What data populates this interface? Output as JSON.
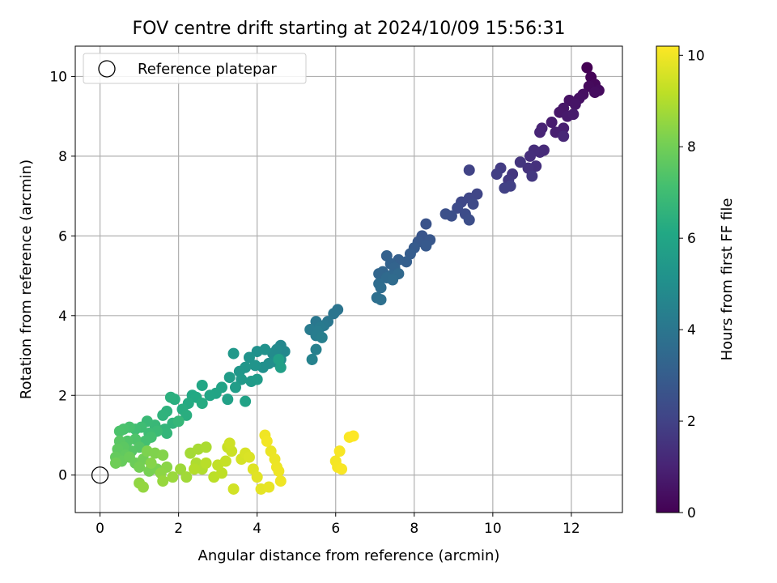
{
  "chart_data": {
    "type": "scatter",
    "title": "FOV centre drift starting at 2024/10/09 15:56:31",
    "xlabel": "Angular distance from reference (arcmin)",
    "ylabel": "Rotation from reference (arcmin)",
    "xlim": [
      -0.63,
      13.3
    ],
    "ylim": [
      -0.94,
      10.76
    ],
    "xticks": [
      0,
      2,
      4,
      6,
      8,
      10,
      12
    ],
    "yticks": [
      0,
      2,
      4,
      6,
      8,
      10
    ],
    "grid": true,
    "legend": {
      "label": "Reference platepar",
      "position": "top-left"
    },
    "reference_point": {
      "x": 0,
      "y": 0
    },
    "colorbar": {
      "label": "Hours from first FF file",
      "range": [
        0,
        10.2
      ],
      "ticks": [
        0,
        2,
        4,
        6,
        8,
        10
      ],
      "colormap": "viridis"
    },
    "series": [
      {
        "points": [
          [
            12.4,
            10.22,
            0.0
          ],
          [
            12.5,
            9.98,
            0.1
          ],
          [
            12.6,
            9.8,
            0.2
          ],
          [
            12.45,
            9.75,
            0.25
          ],
          [
            12.7,
            9.65,
            0.3
          ],
          [
            12.6,
            9.6,
            0.35
          ],
          [
            12.3,
            9.55,
            0.4
          ],
          [
            12.2,
            9.45,
            0.45
          ],
          [
            11.95,
            9.4,
            0.5
          ],
          [
            12.1,
            9.3,
            0.55
          ],
          [
            11.8,
            9.2,
            0.6
          ],
          [
            11.7,
            9.1,
            0.65
          ],
          [
            11.9,
            9.0,
            0.7
          ],
          [
            12.05,
            9.05,
            0.75
          ],
          [
            11.5,
            8.85,
            0.8
          ],
          [
            11.8,
            8.7,
            0.85
          ],
          [
            11.6,
            8.6,
            0.9
          ],
          [
            11.25,
            8.7,
            1.0
          ],
          [
            11.2,
            8.6,
            1.05
          ],
          [
            11.8,
            8.5,
            1.1
          ],
          [
            11.3,
            8.15,
            1.2
          ],
          [
            11.2,
            8.1,
            1.25
          ],
          [
            11.05,
            8.15,
            1.3
          ],
          [
            10.95,
            8.0,
            1.35
          ],
          [
            11.1,
            7.75,
            1.4
          ],
          [
            10.9,
            7.7,
            1.5
          ],
          [
            10.7,
            7.85,
            1.55
          ],
          [
            10.5,
            7.55,
            1.6
          ],
          [
            11.0,
            7.5,
            1.65
          ],
          [
            10.4,
            7.4,
            1.7
          ],
          [
            10.2,
            7.7,
            1.8
          ],
          [
            10.1,
            7.55,
            1.85
          ],
          [
            10.45,
            7.25,
            1.9
          ],
          [
            10.3,
            7.2,
            1.95
          ],
          [
            9.4,
            7.65,
            2.0
          ],
          [
            9.6,
            7.05,
            2.1
          ],
          [
            9.4,
            6.95,
            2.15
          ],
          [
            9.2,
            6.85,
            2.2
          ],
          [
            9.5,
            6.8,
            2.25
          ],
          [
            9.1,
            6.7,
            2.3
          ],
          [
            9.3,
            6.55,
            2.35
          ],
          [
            9.4,
            6.4,
            2.4
          ],
          [
            8.95,
            6.5,
            2.45
          ],
          [
            8.8,
            6.55,
            2.5
          ],
          [
            8.3,
            6.3,
            2.6
          ],
          [
            8.2,
            6.0,
            2.7
          ],
          [
            8.4,
            5.9,
            2.75
          ],
          [
            8.1,
            5.85,
            2.8
          ],
          [
            8.3,
            5.75,
            2.85
          ],
          [
            8.0,
            5.7,
            2.9
          ],
          [
            7.9,
            5.55,
            3.0
          ],
          [
            7.8,
            5.35,
            3.05
          ],
          [
            7.6,
            5.4,
            3.1
          ],
          [
            7.3,
            5.5,
            3.15
          ],
          [
            7.4,
            5.3,
            3.2
          ],
          [
            7.5,
            5.2,
            3.25
          ],
          [
            7.2,
            5.1,
            3.3
          ],
          [
            7.1,
            5.05,
            3.35
          ],
          [
            7.4,
            5.0,
            3.4
          ],
          [
            7.6,
            5.05,
            3.45
          ],
          [
            7.3,
            4.95,
            3.5
          ],
          [
            7.45,
            4.9,
            3.55
          ],
          [
            7.1,
            4.8,
            3.6
          ],
          [
            7.15,
            4.7,
            3.65
          ],
          [
            7.05,
            4.45,
            3.7
          ],
          [
            7.15,
            4.4,
            3.75
          ],
          [
            6.05,
            4.15,
            3.9
          ],
          [
            5.95,
            4.05,
            3.95
          ],
          [
            5.8,
            3.85,
            4.0
          ],
          [
            5.5,
            3.85,
            4.05
          ],
          [
            5.7,
            3.75,
            4.1
          ],
          [
            5.6,
            3.7,
            4.15
          ],
          [
            5.35,
            3.65,
            4.2
          ],
          [
            5.55,
            3.6,
            4.25
          ],
          [
            5.5,
            3.5,
            4.3
          ],
          [
            5.65,
            3.45,
            4.35
          ],
          [
            5.5,
            3.15,
            4.4
          ],
          [
            5.4,
            2.9,
            4.5
          ],
          [
            4.6,
            3.25,
            4.7
          ],
          [
            4.7,
            3.1,
            4.75
          ],
          [
            4.5,
            3.15,
            4.8
          ],
          [
            4.4,
            3.05,
            4.85
          ],
          [
            4.6,
            2.9,
            4.9
          ],
          [
            4.45,
            2.85,
            4.95
          ],
          [
            4.3,
            2.8,
            5.0
          ],
          [
            4.15,
            2.7,
            5.05
          ],
          [
            4.0,
            3.1,
            5.1
          ],
          [
            4.2,
            3.15,
            5.15
          ],
          [
            3.8,
            2.95,
            5.2
          ],
          [
            3.95,
            2.75,
            5.25
          ],
          [
            3.7,
            2.7,
            5.3
          ],
          [
            3.55,
            2.6,
            5.35
          ],
          [
            3.4,
            3.05,
            5.4
          ],
          [
            3.6,
            2.4,
            5.45
          ],
          [
            3.85,
            2.35,
            5.5
          ],
          [
            4.0,
            2.4,
            5.55
          ],
          [
            3.3,
            2.45,
            5.6
          ],
          [
            3.45,
            2.2,
            5.65
          ],
          [
            4.6,
            2.7,
            5.7
          ],
          [
            4.55,
            2.9,
            5.75
          ],
          [
            3.25,
            1.9,
            5.8
          ],
          [
            3.7,
            1.85,
            5.85
          ],
          [
            3.1,
            2.2,
            5.9
          ],
          [
            2.95,
            2.05,
            5.95
          ],
          [
            2.8,
            2.0,
            6.0
          ],
          [
            2.6,
            2.25,
            6.05
          ],
          [
            2.35,
            2.0,
            6.1
          ],
          [
            2.45,
            1.95,
            6.15
          ],
          [
            2.25,
            1.8,
            6.2
          ],
          [
            2.6,
            1.8,
            6.25
          ],
          [
            2.1,
            1.65,
            6.3
          ],
          [
            2.2,
            1.5,
            6.35
          ],
          [
            1.9,
            1.9,
            6.4
          ],
          [
            1.8,
            1.95,
            6.45
          ],
          [
            1.7,
            1.6,
            6.5
          ],
          [
            1.6,
            1.5,
            6.55
          ],
          [
            1.85,
            1.3,
            6.6
          ],
          [
            1.65,
            1.15,
            6.65
          ],
          [
            1.7,
            1.05,
            6.7
          ],
          [
            2.0,
            1.35,
            6.75
          ],
          [
            1.4,
            1.25,
            6.8
          ],
          [
            1.2,
            1.35,
            6.85
          ],
          [
            1.45,
            1.1,
            6.9
          ],
          [
            1.25,
            1.05,
            6.95
          ],
          [
            1.05,
            1.2,
            7.0
          ],
          [
            0.9,
            1.15,
            7.05
          ],
          [
            1.3,
            0.95,
            7.1
          ],
          [
            1.15,
            0.85,
            7.15
          ],
          [
            0.75,
            1.2,
            7.2
          ],
          [
            0.6,
            1.15,
            7.25
          ],
          [
            0.5,
            1.1,
            7.3
          ],
          [
            0.9,
            0.9,
            7.35
          ],
          [
            0.7,
            0.85,
            7.4
          ],
          [
            1.0,
            0.7,
            7.45
          ],
          [
            0.8,
            0.6,
            7.5
          ],
          [
            0.5,
            0.85,
            7.55
          ],
          [
            0.6,
            0.7,
            7.6
          ],
          [
            0.45,
            0.65,
            7.65
          ],
          [
            0.65,
            0.5,
            7.7
          ],
          [
            0.4,
            0.45,
            7.75
          ],
          [
            0.55,
            0.35,
            7.8
          ],
          [
            0.75,
            0.45,
            7.85
          ],
          [
            0.9,
            0.3,
            7.9
          ],
          [
            0.4,
            0.3,
            7.95
          ],
          [
            1.1,
            0.4,
            8.0
          ],
          [
            1.0,
            0.2,
            8.05
          ],
          [
            1.25,
            0.1,
            8.1
          ],
          [
            1.45,
            0.15,
            8.15
          ],
          [
            1.2,
            0.6,
            8.2
          ],
          [
            1.4,
            0.55,
            8.25
          ],
          [
            1.6,
            0.5,
            8.3
          ],
          [
            1.3,
            0.3,
            8.35
          ],
          [
            1.7,
            0.2,
            8.4
          ],
          [
            1.55,
            0.05,
            8.45
          ],
          [
            1.0,
            -0.2,
            8.5
          ],
          [
            1.1,
            -0.3,
            8.55
          ],
          [
            1.6,
            -0.15,
            8.6
          ],
          [
            1.85,
            -0.05,
            8.65
          ],
          [
            2.05,
            0.15,
            8.7
          ],
          [
            2.2,
            -0.05,
            8.75
          ],
          [
            2.3,
            0.55,
            8.8
          ],
          [
            2.5,
            0.65,
            8.85
          ],
          [
            2.7,
            0.7,
            8.9
          ],
          [
            2.45,
            0.3,
            8.95
          ],
          [
            2.6,
            0.15,
            9.0
          ],
          [
            2.4,
            0.15,
            9.05
          ],
          [
            2.7,
            0.3,
            9.1
          ],
          [
            2.9,
            -0.05,
            9.15
          ],
          [
            3.1,
            0.05,
            9.2
          ],
          [
            3.0,
            0.25,
            9.25
          ],
          [
            3.2,
            0.35,
            9.3
          ],
          [
            3.25,
            0.7,
            9.35
          ],
          [
            3.35,
            0.6,
            9.4
          ],
          [
            3.3,
            0.8,
            9.45
          ],
          [
            3.4,
            -0.35,
            9.5
          ],
          [
            3.6,
            0.4,
            9.55
          ],
          [
            3.7,
            0.55,
            9.6
          ],
          [
            3.8,
            0.45,
            9.65
          ],
          [
            3.9,
            0.15,
            9.7
          ],
          [
            4.0,
            -0.05,
            9.75
          ],
          [
            4.1,
            -0.35,
            9.8
          ],
          [
            4.3,
            -0.3,
            9.85
          ],
          [
            4.35,
            0.6,
            9.9
          ],
          [
            4.45,
            0.4,
            9.92
          ],
          [
            4.5,
            0.2,
            9.94
          ],
          [
            4.55,
            0.1,
            9.96
          ],
          [
            4.6,
            -0.15,
            9.98
          ],
          [
            4.2,
            1.0,
            10.0
          ],
          [
            4.25,
            0.85,
            10.02
          ],
          [
            6.0,
            0.35,
            10.05
          ],
          [
            6.05,
            0.2,
            10.08
          ],
          [
            6.1,
            0.6,
            10.1
          ],
          [
            6.15,
            0.15,
            10.12
          ],
          [
            6.35,
            0.95,
            10.15
          ],
          [
            6.45,
            0.98,
            10.2
          ]
        ]
      }
    ]
  }
}
